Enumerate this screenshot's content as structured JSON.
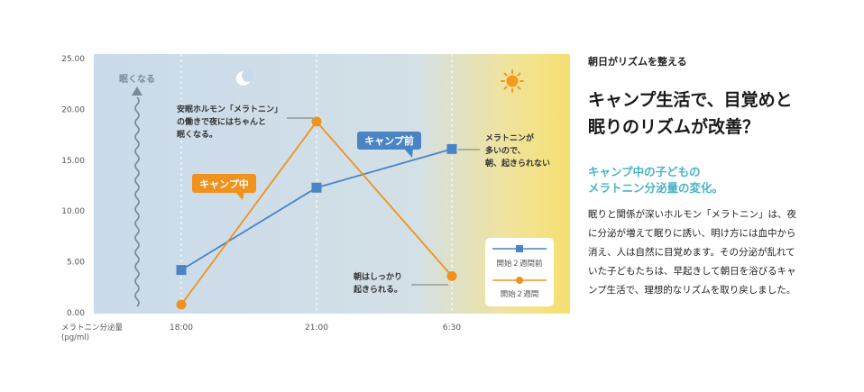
{
  "chart_data": {
    "type": "line",
    "categories": [
      "18:00",
      "21:00",
      "6:30"
    ],
    "series": [
      {
        "name": "開始２週間前",
        "values": [
          4.2,
          12.3,
          16.1
        ],
        "color": "#4a84c4",
        "marker": "square"
      },
      {
        "name": "開始２週間",
        "values": [
          0.8,
          18.8,
          3.6
        ],
        "color": "#f0921e",
        "marker": "circle"
      }
    ],
    "ylim": [
      0,
      25
    ],
    "yticks": [
      "25.00",
      "20.00",
      "15.00",
      "10.00",
      "5.00",
      "0.00"
    ],
    "ylabel": "メラトニン分泌量\n(pg/ml)",
    "legend": {
      "placement": "bottom-right"
    },
    "labels": {
      "sleepy": "眠くなる",
      "camp_before": "キャンプ前",
      "camp_during": "キャンプ中"
    },
    "annotations": {
      "night": "安眠ホルモン「メラトニン」\nの働きで夜にはちゃんと\n眠くなる。",
      "morning_before": "メラトニンが\n多いので、\n朝、起きられない",
      "morning_during": "朝はしっかり\n起きられる。"
    },
    "colors": {
      "night_bg": "#c9daea",
      "morning_bg": "#f6e070",
      "blue": "#4a84c4",
      "orange": "#f0921e"
    }
  },
  "side": {
    "kicker": "朝日がリズムを整える",
    "headline": "キャンプ生活で、目覚めと\n眠りのリズムが改善？",
    "subhead": "キャンプ中の子どもの\nメラトニン分泌量の変化。",
    "body": "眠りと関係が深いホルモン「メラトニン」は、夜に分泌が増えて眠りに誘い、明け方には血中から消え、人は自然に目覚めます。その分泌が乱れていた子どもたちは、早起きして朝日を浴びるキャンプ生活で、理想的なリズムを取り戻しました。"
  }
}
